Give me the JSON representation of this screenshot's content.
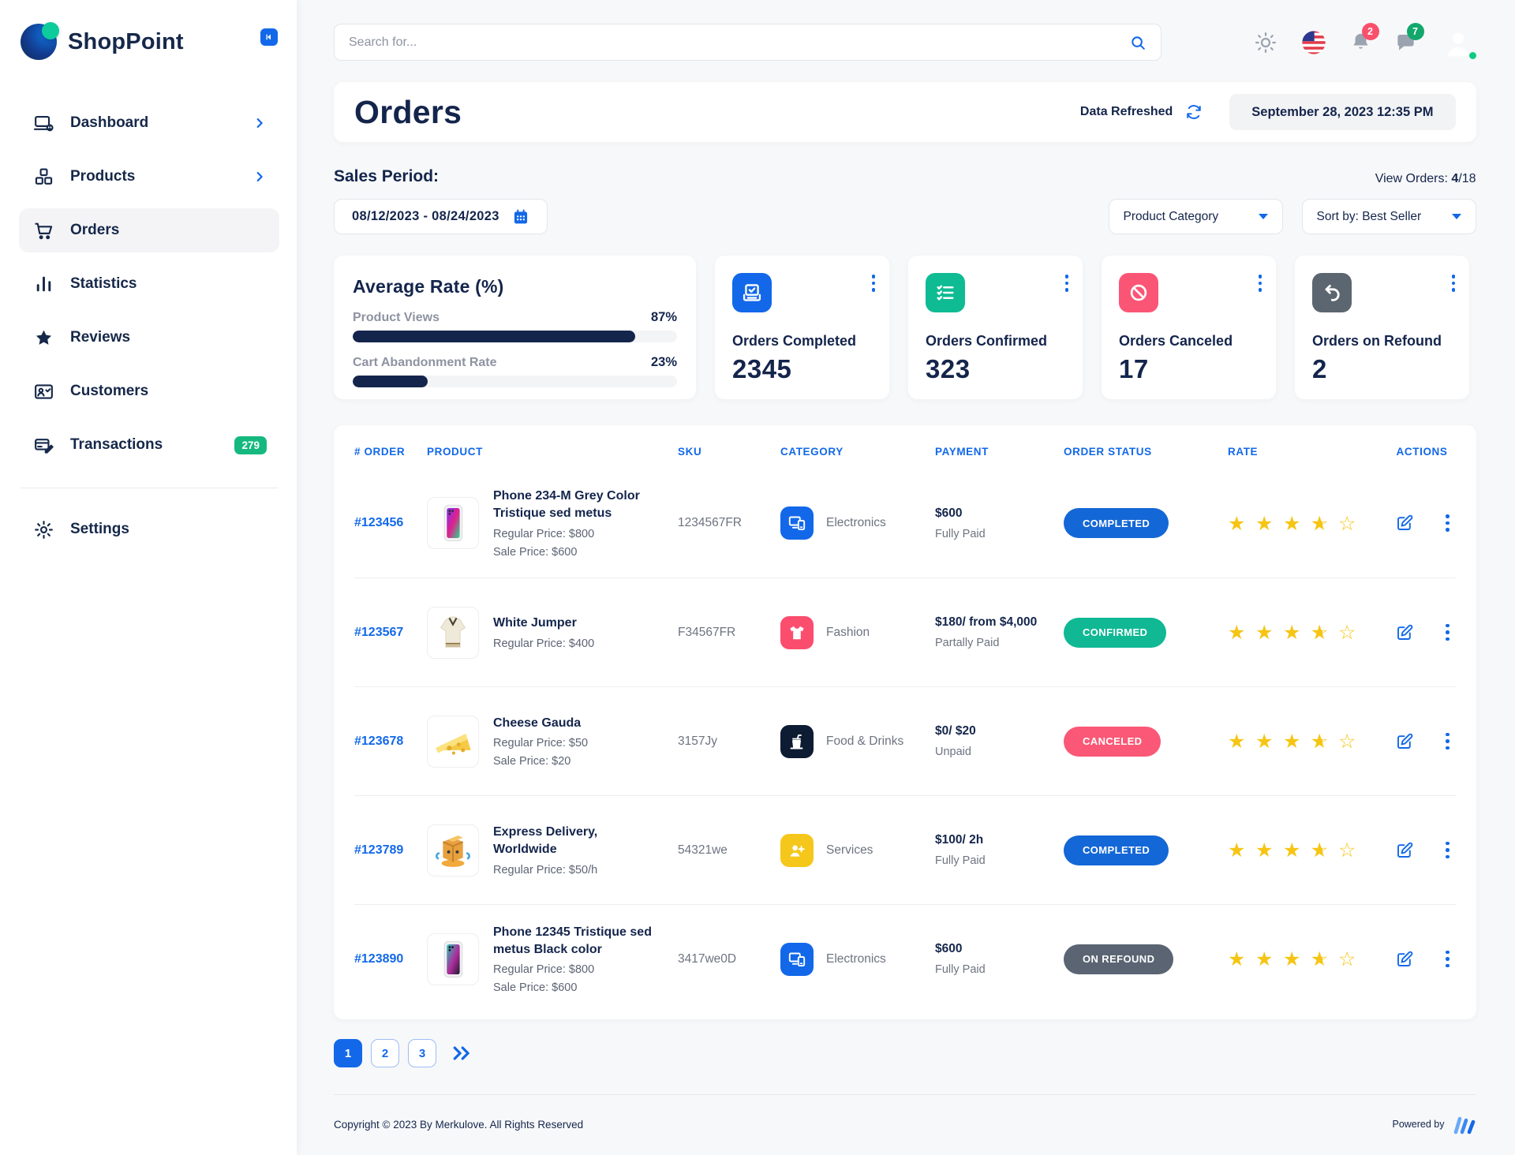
{
  "brand": {
    "name": "ShopPoint"
  },
  "sidebar": {
    "items": [
      {
        "label": "Dashboard",
        "icon": "dashboard-icon",
        "chevron": true,
        "active": false,
        "badge": null
      },
      {
        "label": "Products",
        "icon": "products-icon",
        "chevron": true,
        "active": false,
        "badge": null
      },
      {
        "label": "Orders",
        "icon": "cart-icon",
        "chevron": false,
        "active": true,
        "badge": null
      },
      {
        "label": "Statistics",
        "icon": "statistics-icon",
        "chevron": false,
        "active": false,
        "badge": null
      },
      {
        "label": "Reviews",
        "icon": "star-icon",
        "chevron": false,
        "active": false,
        "badge": null
      },
      {
        "label": "Customers",
        "icon": "customers-icon",
        "chevron": false,
        "active": false,
        "badge": null
      },
      {
        "label": "Transactions",
        "icon": "transactions-icon",
        "chevron": false,
        "active": false,
        "badge": "279"
      }
    ],
    "bottom_items": [
      {
        "label": "Settings",
        "icon": "settings-icon",
        "chevron": false,
        "active": false,
        "badge": null
      }
    ]
  },
  "topbar": {
    "search_placeholder": "Search for...",
    "bell_badge": "2",
    "chat_badge": "7"
  },
  "header": {
    "title": "Orders",
    "refresh_label": "Data Refreshed",
    "timestamp": "September 28, 2023 12:35 PM"
  },
  "filters": {
    "sales_period_label": "Sales Period:",
    "date_range": "08/12/2023 - 08/24/2023",
    "view_orders_label": "View Orders: ",
    "view_orders_current": "4",
    "view_orders_total": "/18",
    "category_dropdown": "Product Category",
    "sort_prefix": "Sort by:  ",
    "sort_value": "Best Seller"
  },
  "average_rate": {
    "title": "Average Rate (%)",
    "metrics": [
      {
        "label": "Product Views",
        "value": "87%",
        "pct": 87
      },
      {
        "label": "Cart Abandonment Rate",
        "value": "23%",
        "pct": 23
      }
    ]
  },
  "stat_cards": [
    {
      "label": "Orders Completed",
      "value": "2345",
      "icon": "ballot-check-icon",
      "color": "#1268e9"
    },
    {
      "label": "Orders Confirmed",
      "value": "323",
      "icon": "checklist-icon",
      "color": "#0fbb93"
    },
    {
      "label": "Orders Canceled",
      "value": "17",
      "icon": "block-icon",
      "color": "#fb5576"
    },
    {
      "label": "Orders on Refound",
      "value": "2",
      "icon": "undo-icon",
      "color": "#5c6670"
    }
  ],
  "table": {
    "columns": [
      "# ORDER",
      "PRODUCT",
      "SKU",
      "CATEGORY",
      "PAYMENT",
      "ORDER STATUS",
      "RATE",
      "ACTIONS"
    ],
    "rows": [
      {
        "order": "#123456",
        "product": {
          "name": "Phone 234-M Grey Color Tristique sed metus",
          "image": "phone-grey",
          "lines": [
            "Regular Price: $800",
            "Sale Price: $600"
          ]
        },
        "sku": "1234567FR",
        "category": {
          "name": "Electronics",
          "icon": "devices-icon",
          "color": "#1268e9"
        },
        "payment": {
          "main": "$600",
          "sub": "Fully Paid"
        },
        "status": {
          "label": "COMPLETED",
          "color": "#1467d6"
        },
        "rate": 3.5
      },
      {
        "order": "#123567",
        "product": {
          "name": "White Jumper",
          "image": "white-jumper",
          "lines": [
            "Regular Price: $400"
          ]
        },
        "sku": "F34567FR",
        "category": {
          "name": "Fashion",
          "icon": "tshirt-icon",
          "color": "#fb4d6d"
        },
        "payment": {
          "main": "$180/ from $4,000",
          "sub": "Partally Paid"
        },
        "status": {
          "label": "CONFIRMED",
          "color": "#10b894"
        },
        "rate": 3.5
      },
      {
        "order": "#123678",
        "product": {
          "name": "Cheese Gauda",
          "image": "cheese",
          "lines": [
            "Regular Price: $50",
            "Sale Price: $20"
          ]
        },
        "sku": "3157Jy",
        "category": {
          "name": "Food & Drinks",
          "icon": "fastfood-icon",
          "color": "#0d1b33"
        },
        "payment": {
          "main": "$0/ $20",
          "sub": "Unpaid"
        },
        "status": {
          "label": "CANCELED",
          "color": "#fa5876"
        },
        "rate": 3.5
      },
      {
        "order": "#123789",
        "product": {
          "name": "Express Delivery, Worldwide",
          "image": "delivery-box",
          "lines": [
            "Regular Price: $50/h"
          ]
        },
        "sku": "54321we",
        "category": {
          "name": "Services",
          "icon": "person-plus-icon",
          "color": "#f5c71b"
        },
        "payment": {
          "main": "$100/ 2h",
          "sub": "Fully Paid"
        },
        "status": {
          "label": "COMPLETED",
          "color": "#1467d6"
        },
        "rate": 3.5
      },
      {
        "order": "#123890",
        "product": {
          "name": "Phone 12345 Tristique sed metus Black color",
          "image": "phone-black",
          "lines": [
            "Regular Price: $800",
            "Sale Price: $600"
          ]
        },
        "sku": "3417we0D",
        "category": {
          "name": "Electronics",
          "icon": "devices-icon",
          "color": "#1268e9"
        },
        "payment": {
          "main": "$600",
          "sub": "Fully Paid"
        },
        "status": {
          "label": "ON REFOUND",
          "color": "#5a6472"
        },
        "rate": 3.5
      }
    ]
  },
  "pagination": {
    "pages": [
      "1",
      "2",
      "3"
    ],
    "active": "1"
  },
  "footer": {
    "copyright": "Copyright © 2023 By Merkulove. All Rights Reserved",
    "powered_by": "Powered by"
  }
}
